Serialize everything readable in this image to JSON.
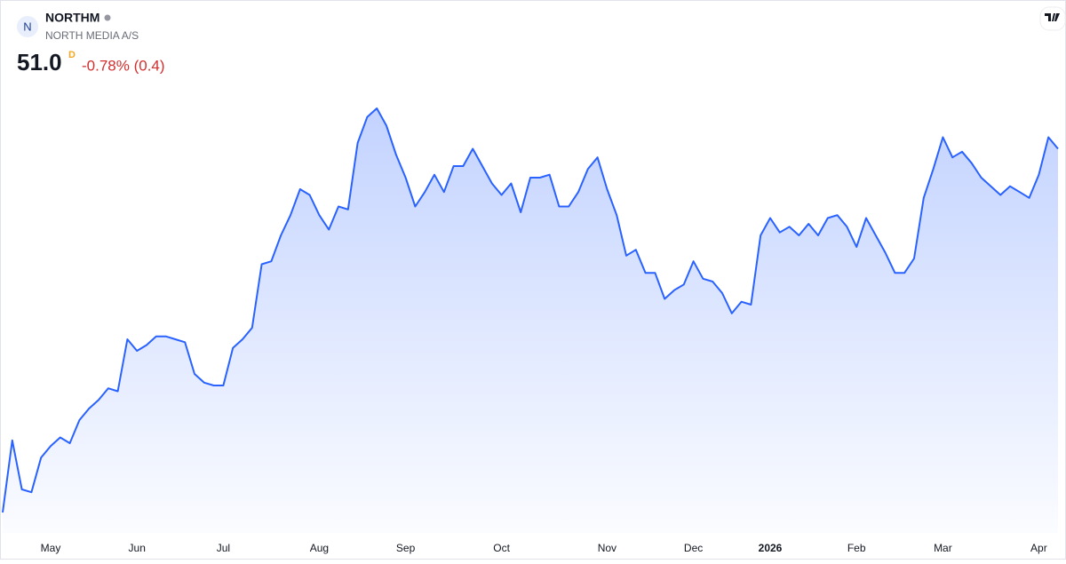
{
  "header": {
    "logo": "N",
    "symbol": "NORTHM",
    "name": "NORTH MEDIA A/S",
    "price": "51.0",
    "flag": "D",
    "change": "-0.78% (0.4)"
  },
  "chart_data": {
    "type": "area",
    "color": "#2962ff",
    "categories": [
      null,
      null,
      null,
      null,
      null,
      "May",
      null,
      null,
      null,
      null,
      null,
      null,
      null,
      null,
      "Jun",
      null,
      null,
      null,
      null,
      null,
      null,
      null,
      null,
      "Jul",
      null,
      null,
      null,
      null,
      null,
      null,
      null,
      null,
      null,
      "Aug",
      null,
      null,
      null,
      null,
      null,
      null,
      null,
      null,
      "Sep",
      null,
      null,
      null,
      null,
      null,
      null,
      null,
      null,
      null,
      "Oct",
      null,
      null,
      null,
      null,
      null,
      null,
      null,
      null,
      null,
      null,
      "Nov",
      null,
      null,
      null,
      null,
      null,
      null,
      null,
      null,
      "Dec",
      null,
      null,
      null,
      null,
      null,
      null,
      null,
      "2026",
      null,
      null,
      null,
      null,
      null,
      null,
      null,
      null,
      "Feb",
      null,
      null,
      null,
      null,
      null,
      null,
      null,
      null,
      "Mar",
      null,
      null,
      null,
      null,
      null,
      null,
      null,
      null,
      null,
      "Apr",
      null,
      null
    ],
    "values": [
      38.4,
      40.9,
      39.2,
      39.1,
      40.3,
      40.7,
      41.0,
      40.8,
      41.6,
      42.0,
      42.3,
      42.7,
      42.6,
      44.4,
      44.0,
      44.2,
      44.5,
      44.5,
      44.4,
      44.3,
      43.2,
      42.9,
      42.8,
      42.8,
      44.1,
      44.4,
      44.8,
      47.0,
      47.1,
      48.0,
      48.7,
      49.6,
      49.4,
      48.7,
      48.2,
      49.0,
      48.9,
      51.2,
      52.1,
      52.4,
      51.8,
      50.8,
      50.0,
      49.0,
      49.5,
      50.1,
      49.5,
      50.4,
      50.4,
      51.0,
      50.4,
      49.8,
      49.4,
      49.8,
      48.8,
      50.0,
      50.0,
      50.1,
      49.0,
      49.0,
      49.5,
      50.3,
      50.7,
      49.6,
      48.7,
      47.3,
      47.5,
      46.7,
      46.7,
      45.8,
      46.1,
      46.3,
      47.1,
      46.5,
      46.4,
      46.0,
      45.3,
      45.7,
      45.6,
      48.0,
      48.6,
      48.1,
      48.3,
      48.0,
      48.4,
      48.0,
      48.6,
      48.7,
      48.3,
      47.6,
      48.6,
      48.0,
      47.4,
      46.7,
      46.7,
      47.2,
      49.3,
      50.3,
      51.4,
      50.7,
      50.9,
      50.5,
      50.0,
      49.7,
      49.4,
      49.7,
      49.5,
      49.3,
      50.1,
      51.4,
      51.0
    ]
  }
}
